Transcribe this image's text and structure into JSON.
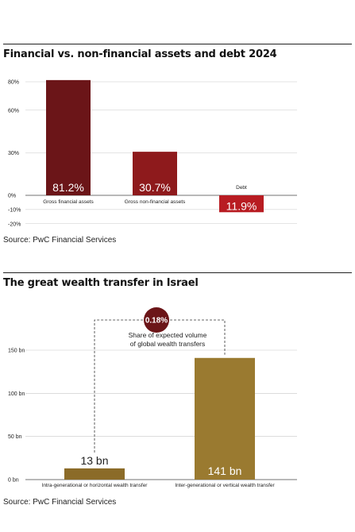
{
  "charts": [
    {
      "source": "Source: PwC Financial Services"
    },
    {
      "source": "Source: PwC Financial Services",
      "annotation": {
        "circle_label": "0.18%",
        "lines": [
          "Share of expected volume",
          "of global wealth transfers"
        ]
      }
    }
  ],
  "chart_data": [
    {
      "type": "bar",
      "title": "Financial vs. non-financial assets and debt 2024",
      "categories": [
        "Gross financial assets",
        "Gross non-financial assets",
        "Debt"
      ],
      "values": [
        81.2,
        30.7,
        -11.9
      ],
      "value_labels": [
        "81.2%",
        "30.7%",
        "11.9%"
      ],
      "colors": [
        "#6b1518",
        "#8e1a1c",
        "#b81c22"
      ],
      "yticks": [
        80,
        60,
        30,
        0,
        -10,
        -20
      ],
      "ytick_labels": [
        "80%",
        "60%",
        "30%",
        "0%",
        "-10%",
        "-20%"
      ],
      "ylim": [
        -20,
        90
      ],
      "grid": true
    },
    {
      "type": "bar",
      "title": "The great wealth transfer in Israel",
      "categories": [
        "Intra-generational or horizontal wealth transfer",
        "Inter-generational or vertical wealth transfer"
      ],
      "values": [
        13,
        141
      ],
      "value_labels": [
        "13 bn",
        "141 bn"
      ],
      "colors": [
        "#8b6b28",
        "#9a7a30"
      ],
      "yticks": [
        150,
        100,
        50,
        0
      ],
      "ytick_labels": [
        "150 bn",
        "100 bn",
        "50 bn",
        "0 bn"
      ],
      "ylim": [
        0,
        160
      ],
      "grid": true
    }
  ]
}
